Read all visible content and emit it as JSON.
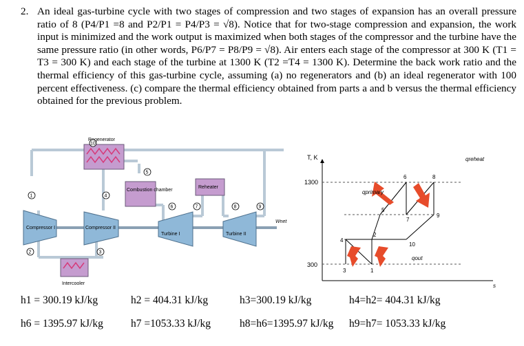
{
  "problem": {
    "number": "2.",
    "text": "An ideal gas-turbine cycle with two stages of compression and two stages of expansion has an overall pressure ratio of 8 (P4/P1 =8 and P2/P1 = P4/P3 = √8). Notice that for two-stage compression and expansion, the work input is minimized and the work output is maximized when both stages of the compressor and the turbine have the same pressure ratio (in other words, P6/P7 = P8/P9 = √8). Air enters each stage of the compressor at 300 K (T1 = T3 = 300 K) and each stage of the turbine at 1300 K (T2 =T4 = 1300 K). Determine the back work ratio and the thermal efficiency of this gas-turbine cycle, assuming (a) no regenerators and (b) an ideal regenerator with 100 percent effectiveness. (c) compare the thermal efficiency obtained from parts a and b versus the thermal efficiency obtained for the previous problem."
  },
  "schematic": {
    "regenerator": "Regenerator",
    "combustion": "Combustion chamber",
    "reheater": "Reheater",
    "compressor1": "Compressor I",
    "compressor2": "Compressor II",
    "turbine1": "Turbine I",
    "turbine2": "Turbine II",
    "intercooler": "Intercooler",
    "wnet": "Wnet",
    "states": [
      "1",
      "2",
      "3",
      "4",
      "5",
      "6",
      "7",
      "8",
      "9",
      "10"
    ]
  },
  "ts_diagram": {
    "y_axis": "T, K",
    "x_axis": "s",
    "t_high": "1300",
    "t_low": "300",
    "q_primary": "qprimary",
    "q_reheat": "qreheat",
    "q_out": "qout",
    "states": [
      "1",
      "2",
      "3",
      "4",
      "5",
      "6",
      "7",
      "8",
      "9",
      "10"
    ]
  },
  "enthalpies": [
    "h1 = 300.19 kJ/kg",
    "h2 = 404.31 kJ/kg",
    "h3=300.19 kJ/kg",
    "h4=h2= 404.31 kJ/kg",
    "h6 = 1395.97 kJ/kg",
    "h7 =1053.33 kJ/kg",
    "h8=h6=1395.97 kJ/kg",
    "h9=h7= 1053.33 kJ/kg"
  ],
  "colors": {
    "component": "#8fb8d8",
    "heater": "#c59ccf",
    "arrow": "#e74c2b",
    "pipe": "#b9c9d6"
  }
}
